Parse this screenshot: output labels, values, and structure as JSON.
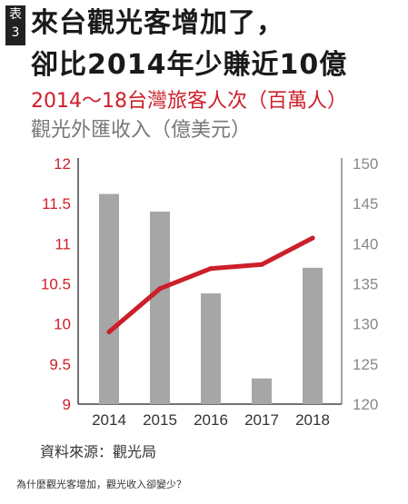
{
  "badge": {
    "label": "表",
    "number": "3"
  },
  "headline": {
    "line1": "來台觀光客增加了，",
    "line2": "卻比2014年少賺近10億"
  },
  "legend": {
    "series1": "2014～18台灣旅客人次（百萬人）",
    "series2": "觀光外匯收入（億美元）"
  },
  "source": "資料來源：觀光局",
  "caption": "為什麼觀光客增加，觀光收入卻變少？",
  "colors": {
    "line": "#cc1f2a",
    "bar": "#a6a6a6",
    "left_axis": "#cc1f2a",
    "right_axis": "#888888"
  },
  "chart_data": {
    "type": "bar+line",
    "categories": [
      "2014",
      "2015",
      "2016",
      "2017",
      "2018"
    ],
    "series": [
      {
        "name": "2014～18台灣旅客人次（百萬人）",
        "type": "line",
        "axis": "left",
        "values": [
          9.9,
          10.44,
          10.69,
          10.74,
          11.07
        ]
      },
      {
        "name": "觀光外匯收入（億美元）",
        "type": "bar",
        "axis": "right",
        "values": [
          146.2,
          144.0,
          133.8,
          123.2,
          137.0
        ]
      }
    ],
    "left_axis": {
      "ylim": [
        9,
        12
      ],
      "ticks": [
        "12",
        "11.5",
        "11",
        "10.5",
        "10",
        "9.5",
        "9"
      ]
    },
    "right_axis": {
      "ylim": [
        120,
        150
      ],
      "ticks": [
        "150",
        "145",
        "140",
        "135",
        "130",
        "125",
        "120"
      ]
    },
    "grid": false
  }
}
